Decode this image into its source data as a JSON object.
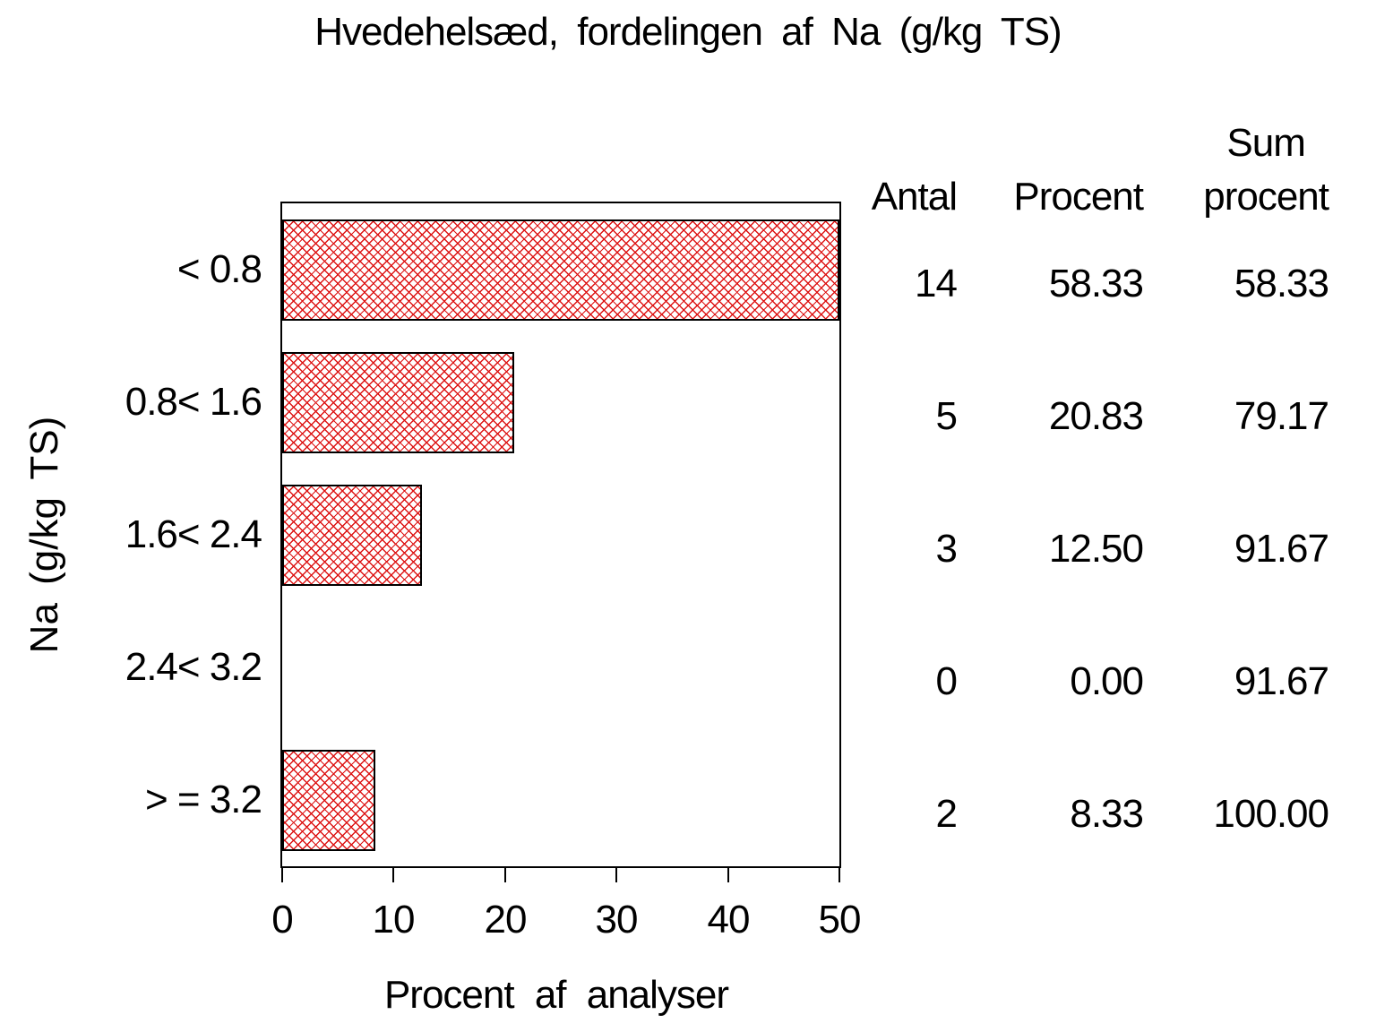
{
  "title": "Hvedehelsæd, fordelingen af Na (g/kg TS)",
  "chart_data": {
    "type": "bar",
    "orientation": "horizontal",
    "title": "Hvedehelsæd, fordelingen af Na (g/kg TS)",
    "xlabel": "Procent af analyser",
    "ylabel": "Na (g/kg TS)",
    "categories": [
      "< 0.8",
      "0.8< 1.6",
      "1.6< 2.4",
      "2.4< 3.2",
      "> = 3.2"
    ],
    "values": [
      58.33,
      20.83,
      12.5,
      0.0,
      8.33
    ],
    "counts": [
      14,
      5,
      3,
      0,
      2
    ],
    "cumulative_percent": [
      58.33,
      79.17,
      91.67,
      91.67,
      100.0
    ],
    "xlim": [
      0,
      50
    ],
    "xticks": [
      0,
      10,
      20,
      30,
      40,
      50
    ],
    "grid": false,
    "bar_style": "red diagonal crosshatch, black outline; first bar clipped at axis max 50",
    "bar_color": "#dd1414",
    "frame_color": "#000000",
    "table": {
      "headers": [
        "Antal",
        "Procent",
        "Sum procent"
      ],
      "header_line1": [
        "",
        "",
        "Sum"
      ],
      "header_line2": [
        "Antal",
        "Procent",
        "procent"
      ],
      "rows": [
        {
          "antal": "14",
          "procent": "58.33",
          "sum_procent": "58.33"
        },
        {
          "antal": "5",
          "procent": "20.83",
          "sum_procent": "79.17"
        },
        {
          "antal": "3",
          "procent": "12.50",
          "sum_procent": "91.67"
        },
        {
          "antal": "0",
          "procent": "0.00",
          "sum_procent": "91.67"
        },
        {
          "antal": "2",
          "procent": "8.33",
          "sum_procent": "100.00"
        }
      ]
    }
  }
}
